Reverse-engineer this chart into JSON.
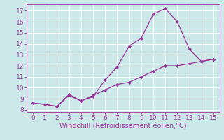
{
  "xlabel": "Windchill (Refroidissement éolien,°C)",
  "line1_x": [
    0,
    1,
    2,
    3,
    4,
    5,
    6,
    7,
    8,
    9,
    10,
    11,
    12,
    13,
    14,
    15
  ],
  "line1_y": [
    8.6,
    8.5,
    8.3,
    9.4,
    8.8,
    9.2,
    10.7,
    11.9,
    13.8,
    14.5,
    16.7,
    17.2,
    16.0,
    13.5,
    12.4,
    12.6
  ],
  "line2_x": [
    0,
    1,
    2,
    3,
    4,
    5,
    6,
    7,
    8,
    9,
    10,
    11,
    12,
    13,
    14,
    15
  ],
  "line2_y": [
    8.6,
    8.5,
    8.3,
    9.3,
    8.8,
    9.3,
    9.8,
    10.3,
    10.5,
    11.0,
    11.5,
    12.0,
    12.0,
    12.2,
    12.4,
    12.6
  ],
  "line_color": "#993399",
  "marker": "D",
  "marker_size": 2,
  "bg_color": "#cce8e8",
  "grid_color": "#ffffff",
  "xlim": [
    -0.5,
    15.5
  ],
  "ylim": [
    7.8,
    17.6
  ],
  "yticks": [
    8,
    9,
    10,
    11,
    12,
    13,
    14,
    15,
    16,
    17
  ],
  "xticks": [
    0,
    1,
    2,
    3,
    4,
    5,
    6,
    7,
    8,
    9,
    10,
    11,
    12,
    13,
    14,
    15
  ],
  "tick_fontsize": 6.5,
  "xlabel_fontsize": 7
}
